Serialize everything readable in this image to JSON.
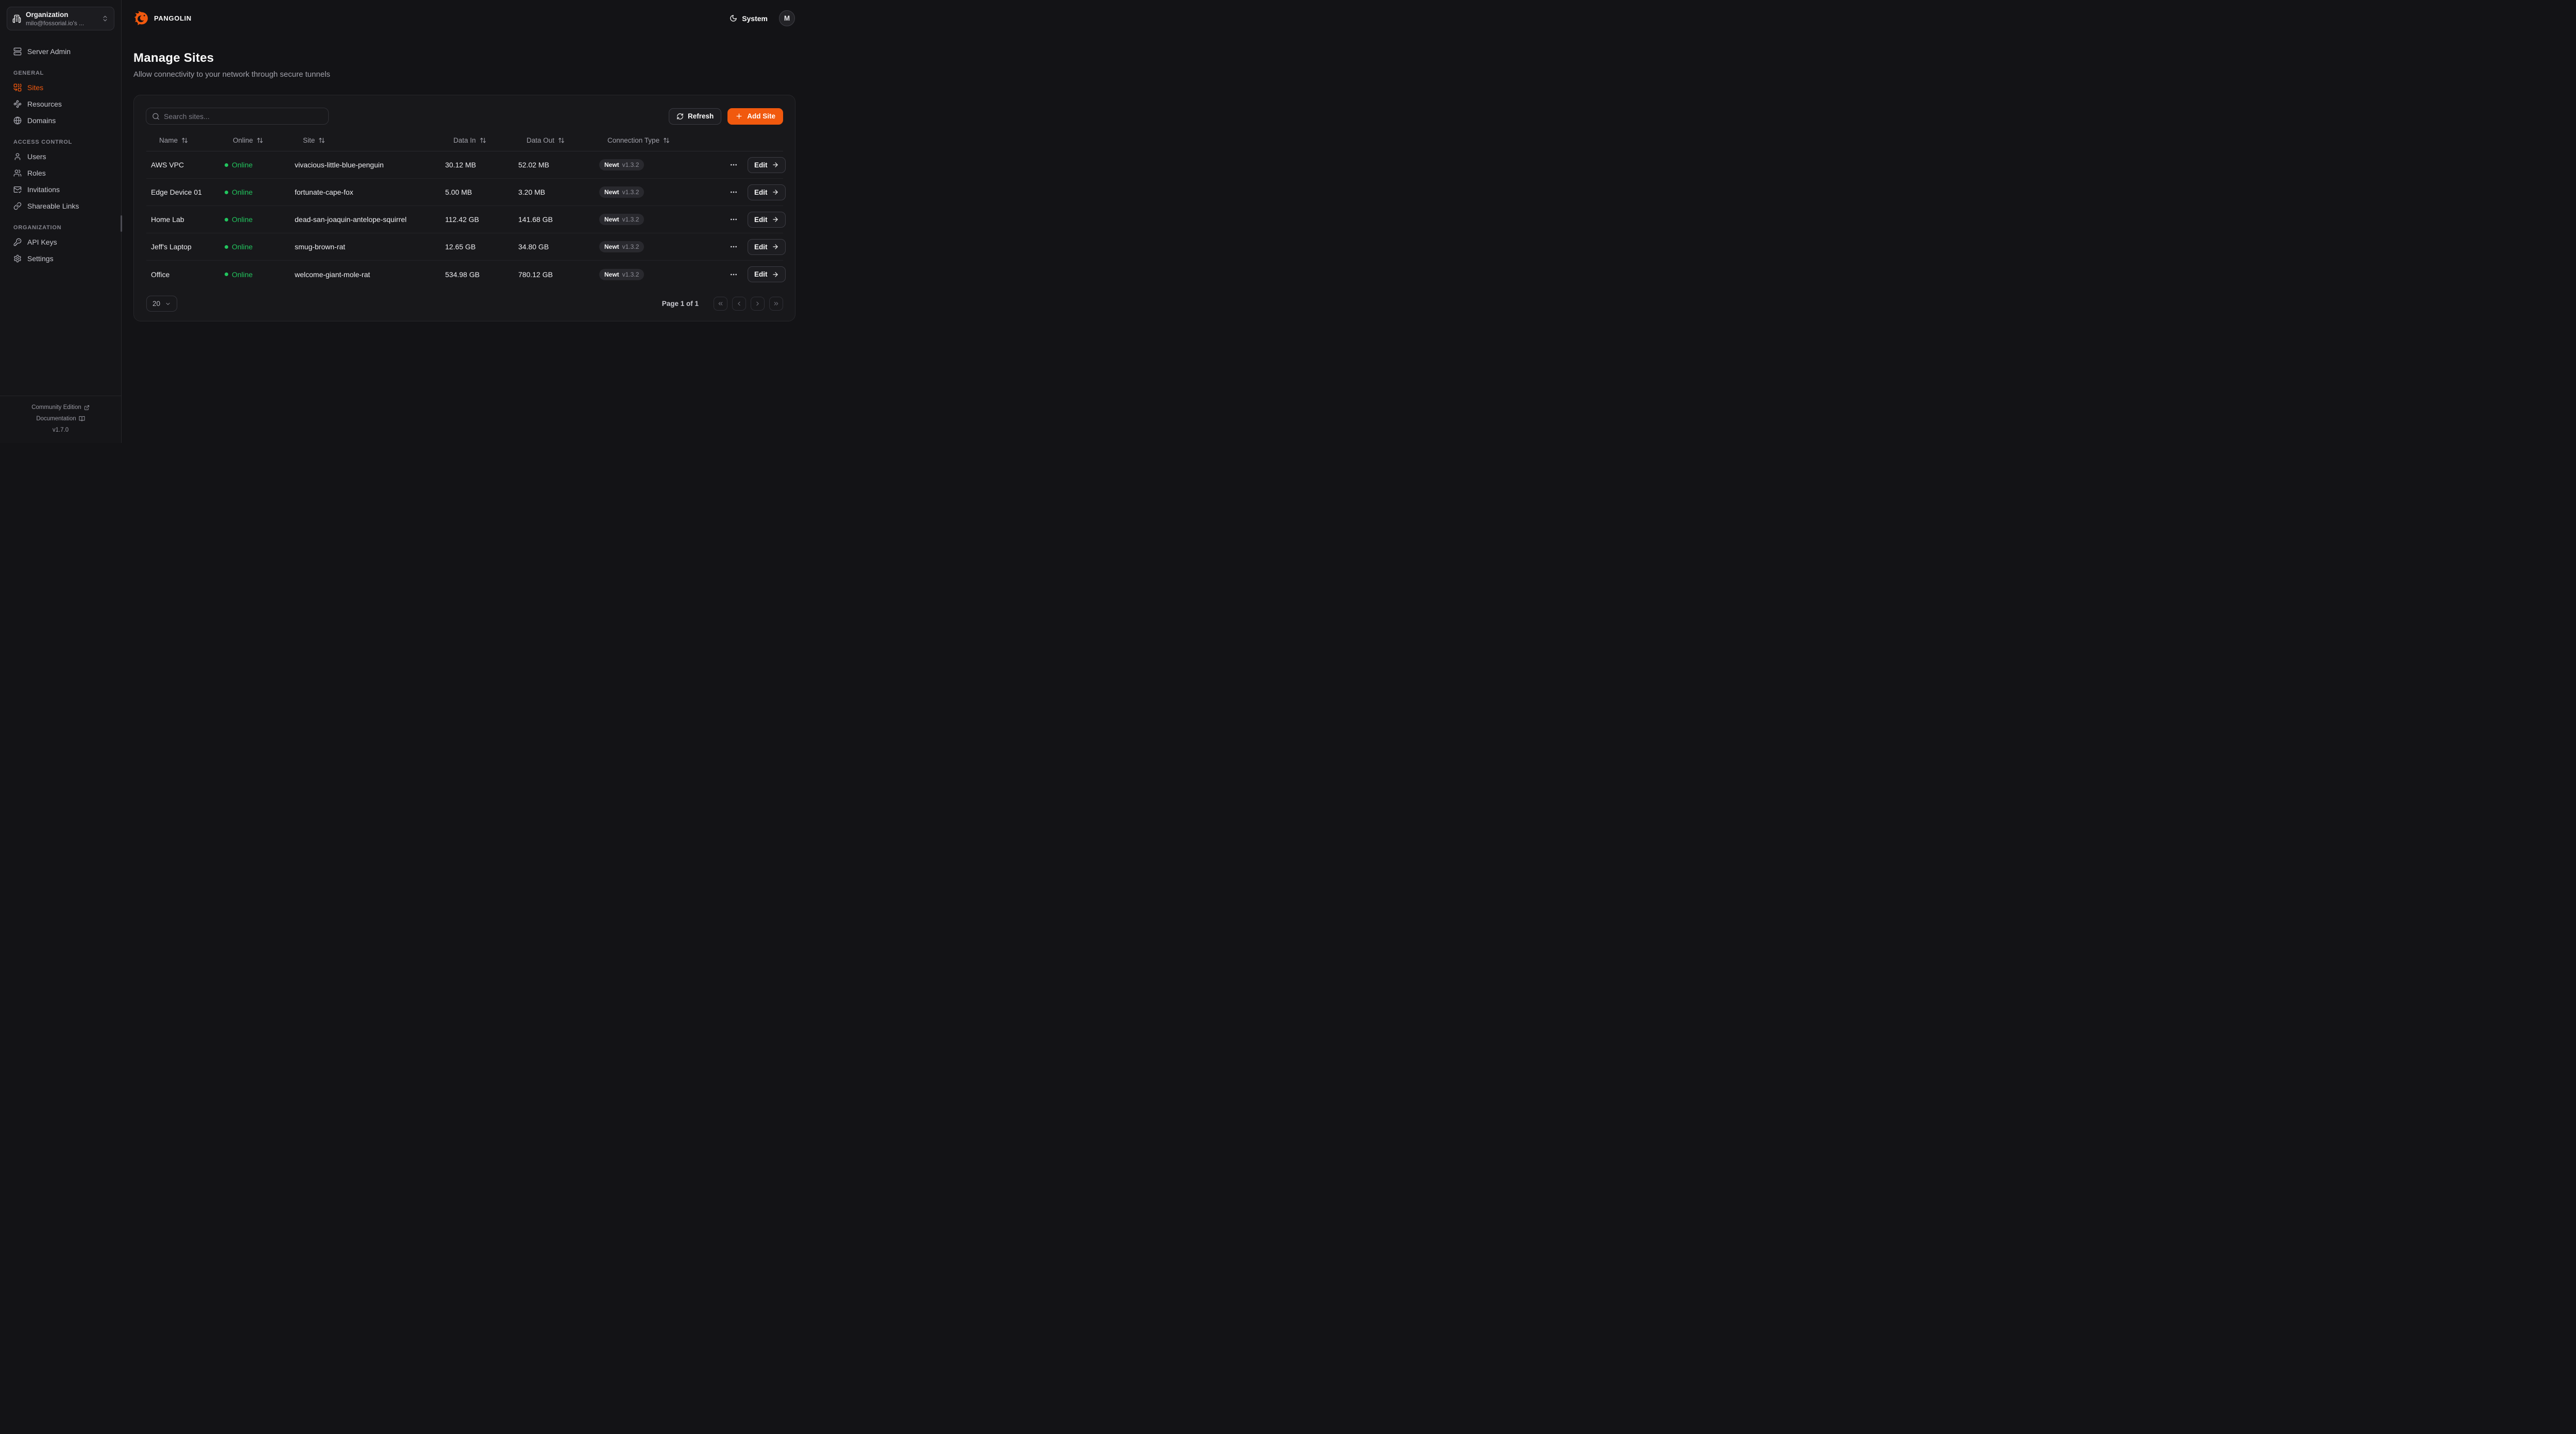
{
  "colors": {
    "accent": "#f1590e",
    "online": "#22c55e",
    "badge_bg": "#29292e"
  },
  "topbar": {
    "brand": "PANGOLIN",
    "theme_label": "System",
    "theme_icon": "moon",
    "avatar_initial": "M"
  },
  "sidebar": {
    "org_switcher": {
      "title": "Organization",
      "subtitle": "milo@fossorial.io's ...",
      "icon": "building"
    },
    "server_admin": {
      "label": "Server Admin",
      "icon": "server"
    },
    "sections": [
      {
        "heading": "GENERAL",
        "items": [
          {
            "label": "Sites",
            "icon": "combine",
            "active": true
          },
          {
            "label": "Resources",
            "icon": "waypoints",
            "active": false
          },
          {
            "label": "Domains",
            "icon": "globe",
            "active": false
          }
        ]
      },
      {
        "heading": "ACCESS CONTROL",
        "items": [
          {
            "label": "Users",
            "icon": "user",
            "active": false
          },
          {
            "label": "Roles",
            "icon": "users",
            "active": false
          },
          {
            "label": "Invitations",
            "icon": "mail-check",
            "active": false
          },
          {
            "label": "Shareable Links",
            "icon": "link",
            "active": false
          }
        ]
      },
      {
        "heading": "ORGANIZATION",
        "items": [
          {
            "label": "API Keys",
            "icon": "key",
            "active": false
          },
          {
            "label": "Settings",
            "icon": "settings",
            "active": false
          }
        ]
      }
    ],
    "footer": {
      "community_edition": "Community Edition",
      "community_icon": "external-link",
      "documentation": "Documentation",
      "documentation_icon": "book-open",
      "version": "v1.7.0"
    }
  },
  "page": {
    "title": "Manage Sites",
    "subtitle": "Allow connectivity to your network through secure tunnels"
  },
  "toolbar": {
    "search_placeholder": "Search sites...",
    "search_icon": "search",
    "refresh_label": "Refresh",
    "refresh_icon": "refresh-cw",
    "add_site_label": "Add Site",
    "add_icon": "plus"
  },
  "table": {
    "columns": [
      "Name",
      "Online",
      "Site",
      "Data In",
      "Data Out",
      "Connection Type"
    ],
    "sort_icon": "arrow-up-down",
    "edit_label": "Edit",
    "rows": [
      {
        "name": "AWS VPC",
        "status": "Online",
        "site": "vivacious-little-blue-penguin",
        "data_in": "30.12 MB",
        "data_out": "52.02 MB",
        "conn_type": "Newt",
        "conn_version": "v1.3.2"
      },
      {
        "name": "Edge Device 01",
        "status": "Online",
        "site": "fortunate-cape-fox",
        "data_in": "5.00 MB",
        "data_out": "3.20 MB",
        "conn_type": "Newt",
        "conn_version": "v1.3.2"
      },
      {
        "name": "Home Lab",
        "status": "Online",
        "site": "dead-san-joaquin-antelope-squirrel",
        "data_in": "112.42 GB",
        "data_out": "141.68 GB",
        "conn_type": "Newt",
        "conn_version": "v1.3.2"
      },
      {
        "name": "Jeff's Laptop",
        "status": "Online",
        "site": "smug-brown-rat",
        "data_in": "12.65 GB",
        "data_out": "34.80 GB",
        "conn_type": "Newt",
        "conn_version": "v1.3.2"
      },
      {
        "name": "Office",
        "status": "Online",
        "site": "welcome-giant-mole-rat",
        "data_in": "534.98 GB",
        "data_out": "780.12 GB",
        "conn_type": "Newt",
        "conn_version": "v1.3.2"
      }
    ]
  },
  "pagination": {
    "page_size": "20",
    "size_icon": "chevron-down",
    "page_label": "Page 1 of 1",
    "nav_icons": [
      "chevrons-left",
      "chevron-left",
      "chevron-right",
      "chevrons-right"
    ]
  }
}
